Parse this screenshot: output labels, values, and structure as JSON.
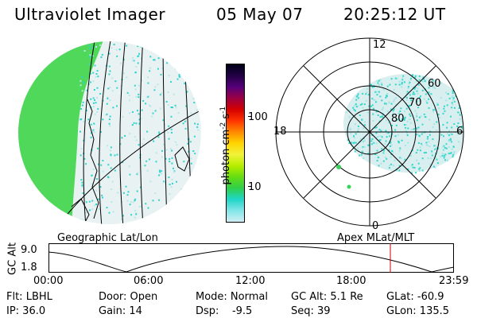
{
  "header": {
    "instrument": "Ultraviolet Imager",
    "date": "05 May 07",
    "time": "20:25:12 UT"
  },
  "colorbar": {
    "unit_label": "photon cm",
    "unit_sup1": "-2",
    "unit_mid": "s",
    "unit_sup2": "-1",
    "tick_100": "100",
    "tick_10": "10",
    "stops": [
      "#000018",
      "#220044",
      "#55007a",
      "#9a0044",
      "#d40000",
      "#ff3300",
      "#ff8800",
      "#ffd400",
      "#f2f23a",
      "#b8ee00",
      "#66dd11",
      "#2fcf4a",
      "#20d6c8",
      "#82e6e8",
      "#cfeff3"
    ]
  },
  "left_panel": {
    "label": "Geographic Lat/Lon",
    "disk_color": "#e9f2f2",
    "dayside_color": "#4fd85a",
    "speckle_color": "#2ed3cf"
  },
  "right_panel": {
    "label": "Apex MLat/MLT",
    "mlt_12": "12",
    "mlt_18": "18",
    "mlt_6": "6",
    "mlt_0": "0",
    "lat_60": "60",
    "lat_70": "70",
    "lat_80": "80"
  },
  "orbit_plot": {
    "ylabel": "GC Alt",
    "ytick_top": "9.0",
    "ytick_bottom": "1.8",
    "xticks": [
      "00:00",
      "06:00",
      "12:00",
      "18:00",
      "23:59"
    ],
    "marker_color": "#cc0000"
  },
  "info": {
    "row1": {
      "flt": "Flt: LBHL",
      "door": "Door: Open",
      "mode": "Mode: Normal",
      "gcalt": "GC Alt: 5.1 Re",
      "glat": "GLat: -60.9"
    },
    "row2": {
      "ip": "IP: 36.0",
      "gain": "Gain: 14",
      "dsp": "Dsp:    -9.5",
      "seq": "Seq: 39",
      "glon": "GLon: 135.5"
    }
  }
}
